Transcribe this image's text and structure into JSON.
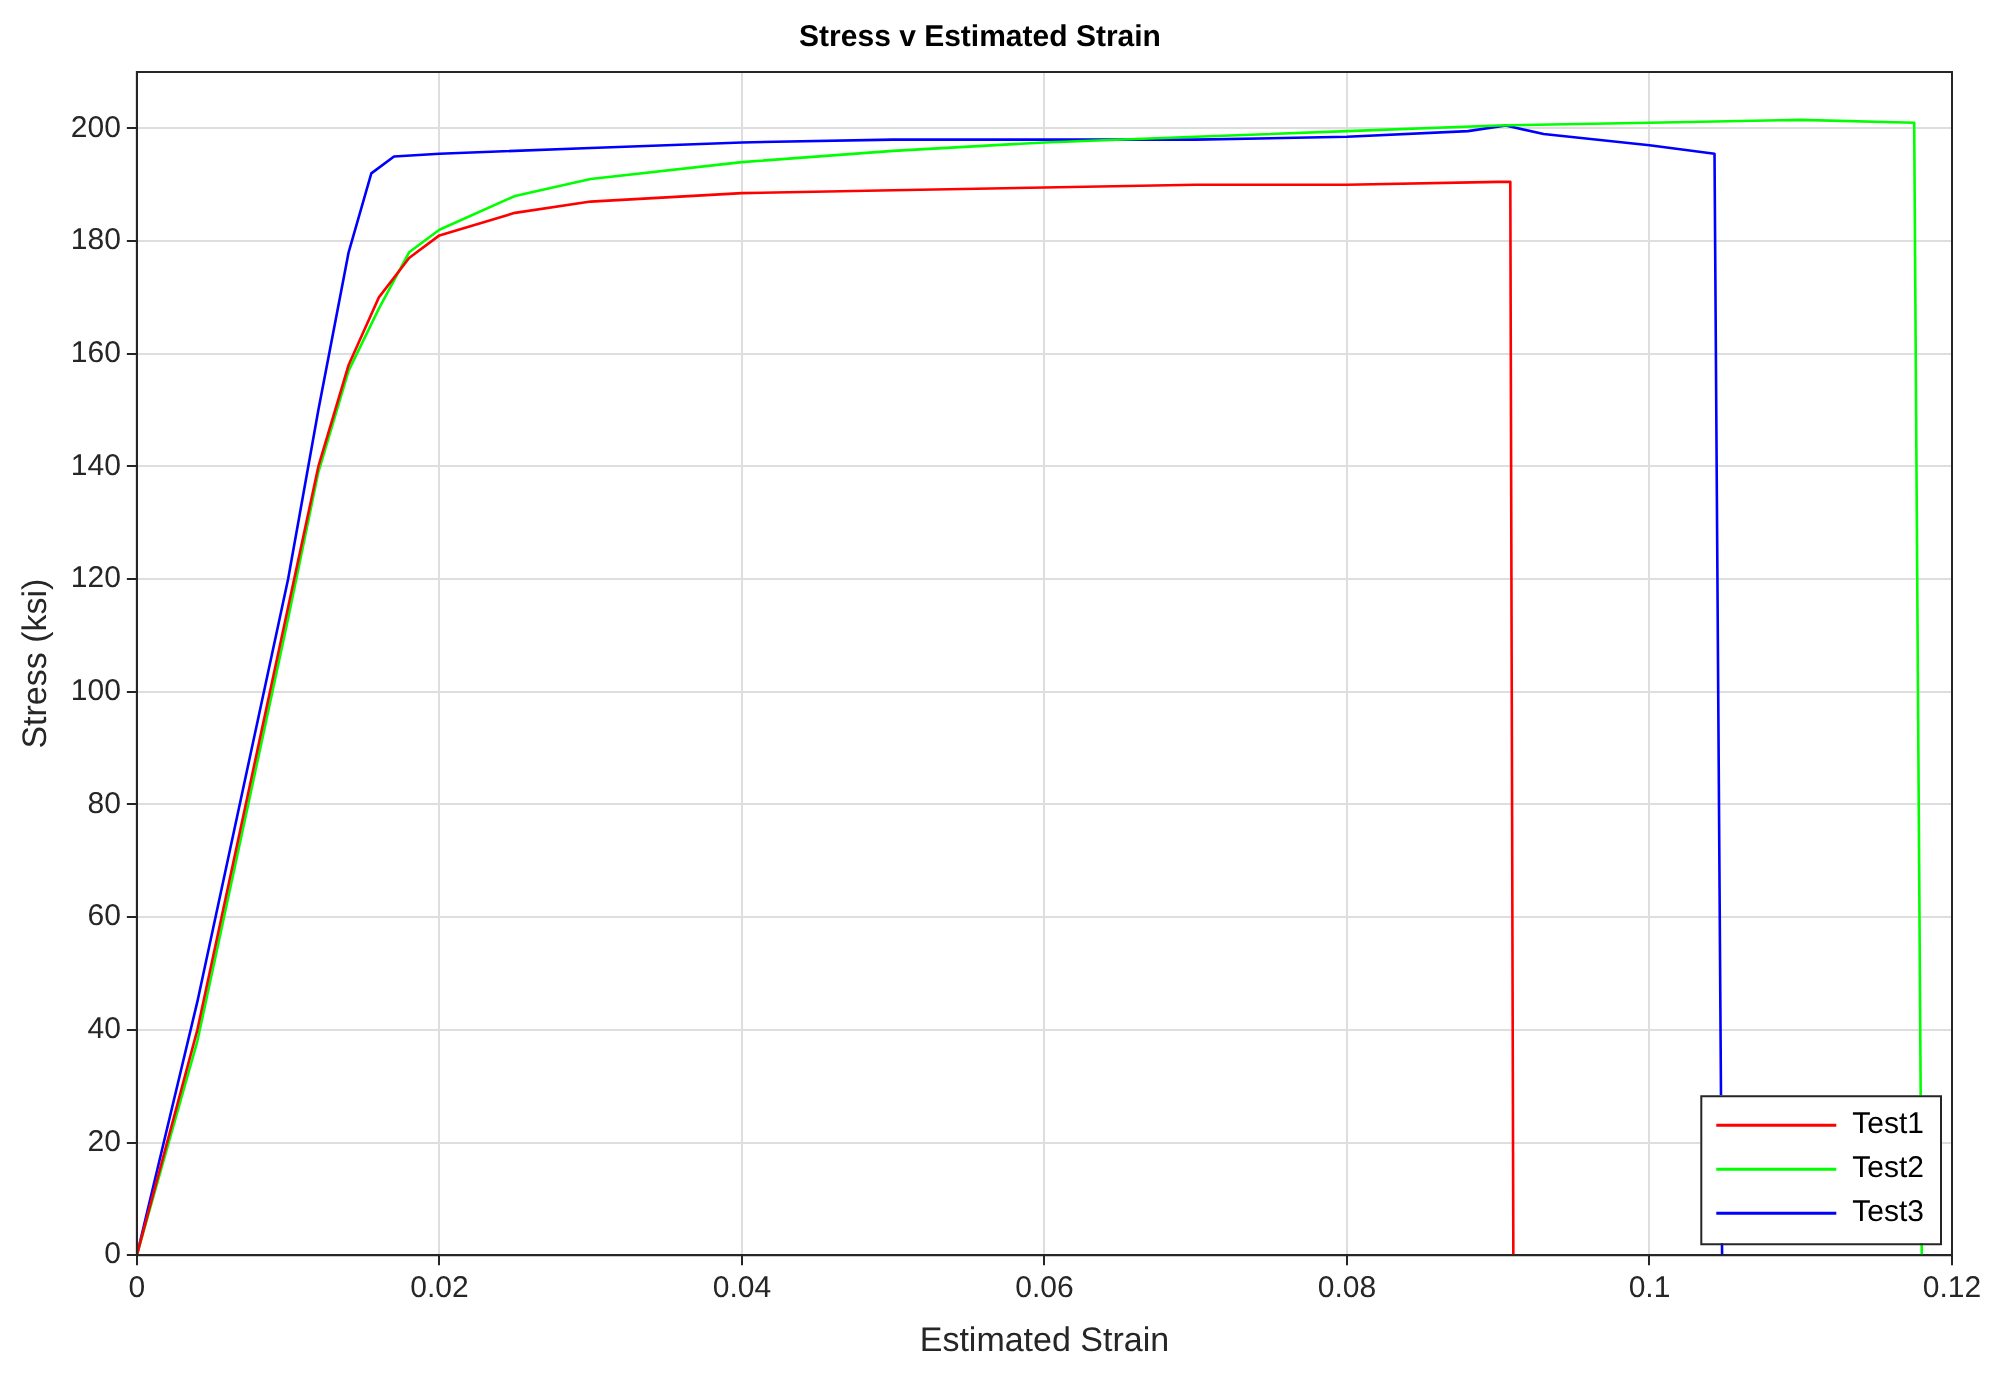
{
  "chart_data": {
    "type": "line",
    "title": "Stress v Estimated Strain",
    "xlabel": "Estimated Strain",
    "ylabel": "Stress (ksi)",
    "xlim": [
      0,
      0.12
    ],
    "xticks": [
      0,
      0.02,
      0.04,
      0.06,
      0.08,
      0.1,
      0.12
    ],
    "ylim": [
      0,
      210
    ],
    "yticks": [
      0,
      20,
      40,
      60,
      80,
      100,
      120,
      140,
      160,
      180,
      200
    ],
    "grid": true,
    "legend": "bottom right",
    "marker": "none",
    "line_style": "solid",
    "series": [
      {
        "name": "Test1",
        "color": "#ff0000",
        "x": [
          0,
          0.004,
          0.008,
          0.01,
          0.012,
          0.014,
          0.016,
          0.018,
          0.02,
          0.025,
          0.03,
          0.04,
          0.05,
          0.06,
          0.07,
          0.08,
          0.09,
          0.0908,
          0.091
        ],
        "values": [
          0,
          40,
          90,
          115,
          140,
          158,
          170,
          177,
          181,
          185,
          187,
          188.5,
          189,
          189.5,
          190,
          190,
          190.5,
          190.5,
          0
        ]
      },
      {
        "name": "Test2",
        "color": "#00ff00",
        "x": [
          0,
          0.004,
          0.008,
          0.01,
          0.012,
          0.014,
          0.016,
          0.018,
          0.02,
          0.025,
          0.03,
          0.04,
          0.05,
          0.06,
          0.07,
          0.08,
          0.09,
          0.1,
          0.11,
          0.1175,
          0.118
        ],
        "values": [
          0,
          38,
          88,
          113,
          139,
          157,
          168,
          178,
          182,
          188,
          191,
          194,
          196,
          197.5,
          198.5,
          199.5,
          200.5,
          201,
          201.5,
          201,
          0
        ]
      },
      {
        "name": "Test3",
        "color": "#0000ff",
        "x": [
          0,
          0.004,
          0.008,
          0.01,
          0.012,
          0.014,
          0.0155,
          0.017,
          0.02,
          0.03,
          0.04,
          0.05,
          0.06,
          0.07,
          0.08,
          0.088,
          0.0905,
          0.093,
          0.1,
          0.1043,
          0.1048
        ],
        "values": [
          0,
          45,
          95,
          120,
          150,
          178,
          192,
          195,
          195.5,
          196.5,
          197.5,
          198,
          198,
          198,
          198.5,
          199.5,
          200.5,
          199,
          197,
          195.5,
          0
        ]
      }
    ]
  }
}
